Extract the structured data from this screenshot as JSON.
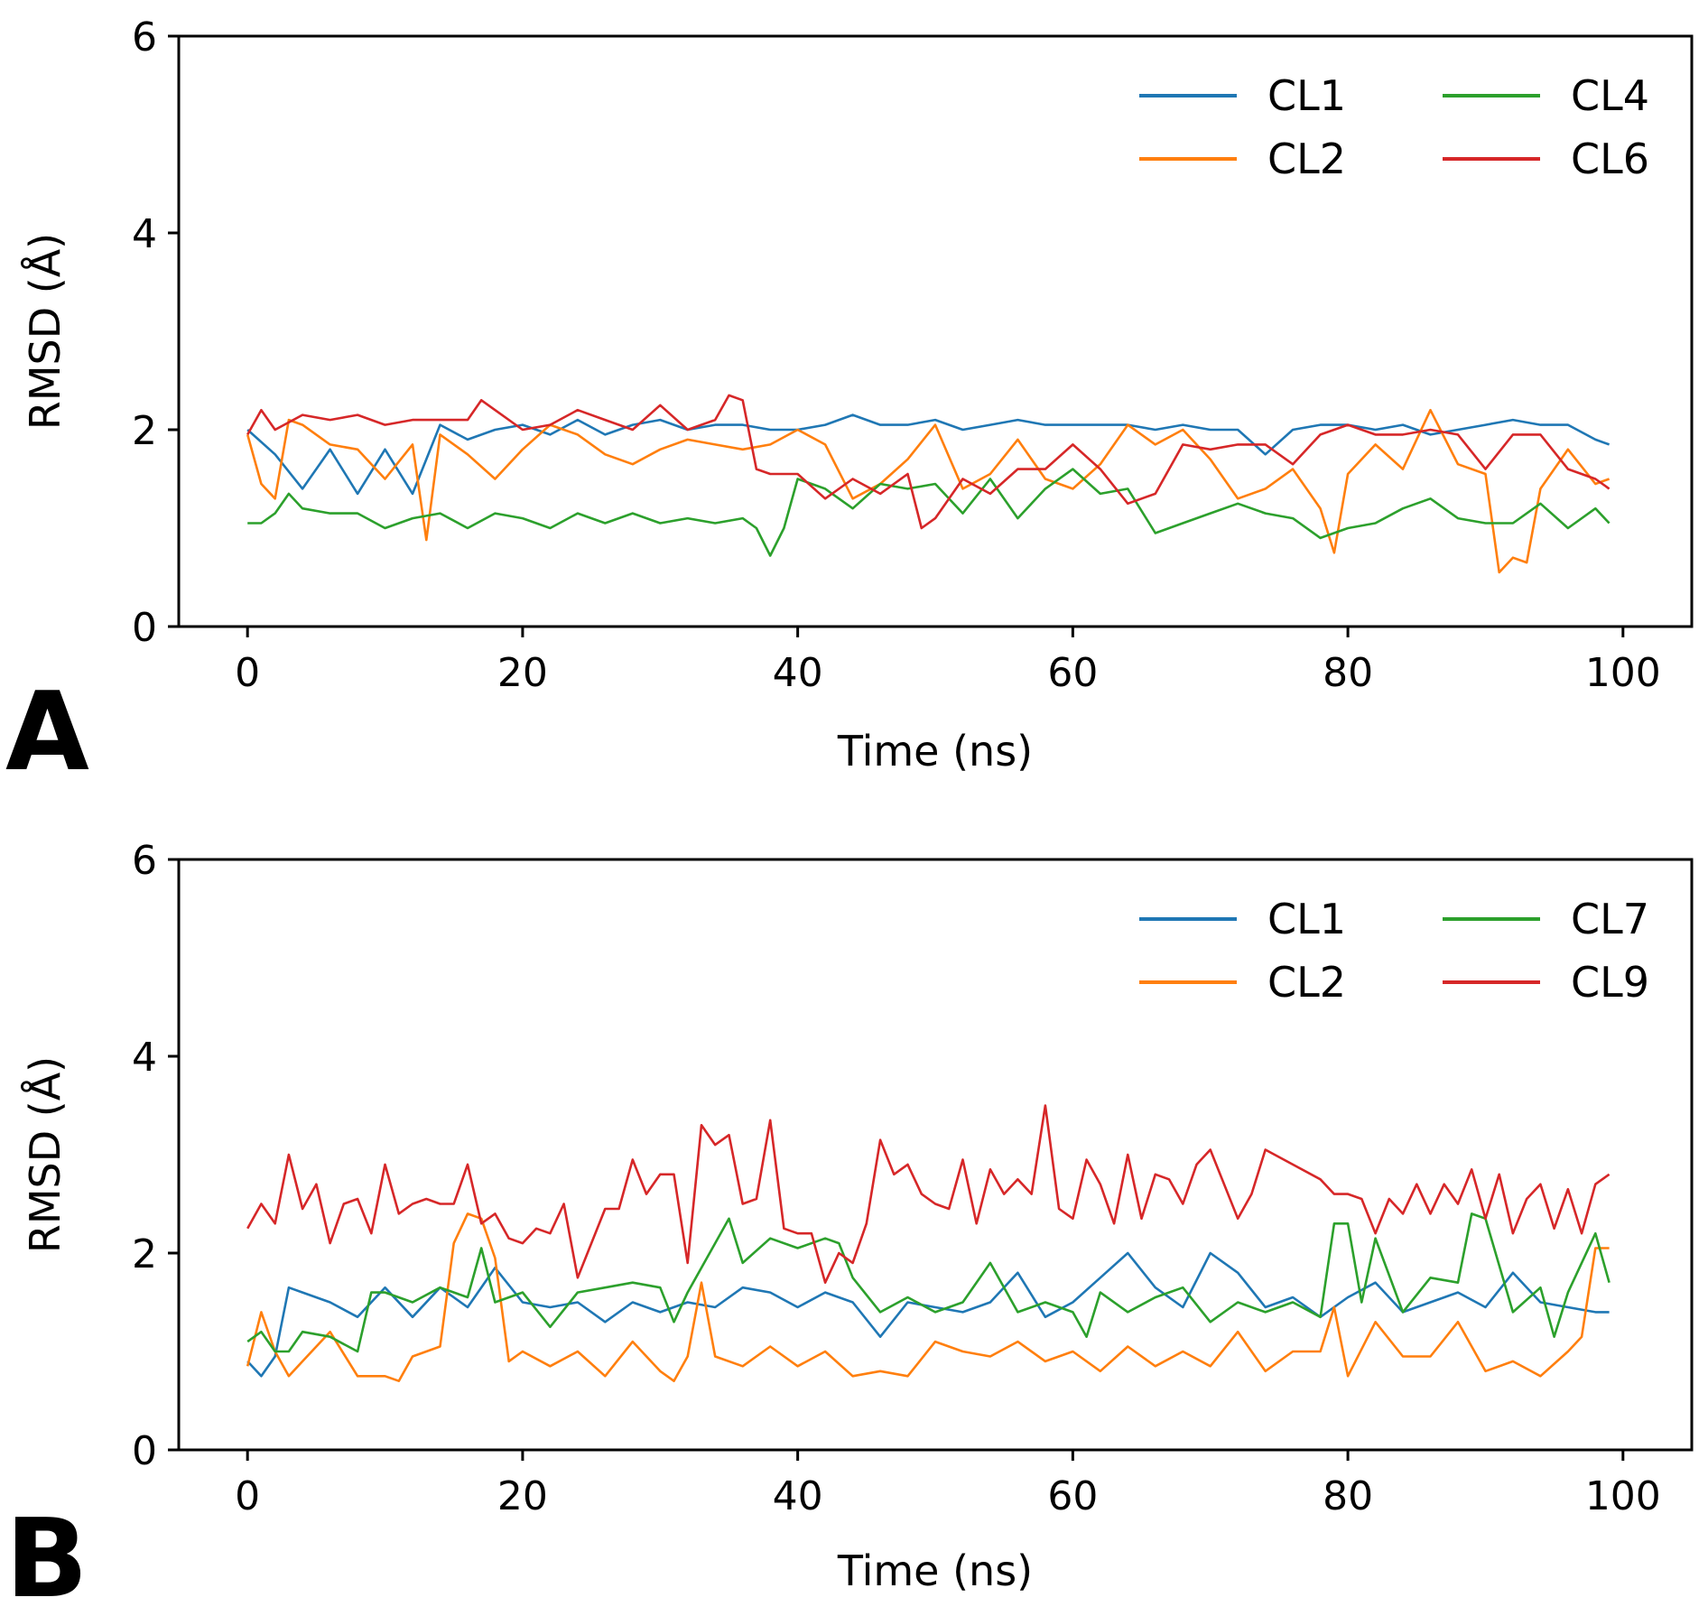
{
  "chart_data": [
    {
      "type": "line",
      "panel": "A",
      "xlabel": "Time (ns)",
      "ylabel": "RMSD (Å)",
      "xlim": [
        -5,
        105
      ],
      "ylim": [
        0,
        6
      ],
      "xticks": [
        "0",
        "20",
        "40",
        "60",
        "80",
        "100"
      ],
      "yticks": [
        "0",
        "2",
        "4",
        "6"
      ],
      "legend_position": "top-right",
      "series": [
        {
          "name": "CL1",
          "color": "#1f77b4",
          "x": [
            0,
            2,
            4,
            6,
            8,
            10,
            12,
            14,
            16,
            18,
            20,
            22,
            24,
            26,
            28,
            30,
            32,
            34,
            36,
            38,
            40,
            42,
            44,
            46,
            48,
            50,
            52,
            54,
            56,
            58,
            60,
            62,
            64,
            66,
            68,
            70,
            72,
            74,
            76,
            78,
            80,
            82,
            84,
            86,
            88,
            90,
            92,
            94,
            96,
            98,
            99
          ],
          "y": [
            2.0,
            1.75,
            1.4,
            1.8,
            1.35,
            1.8,
            1.35,
            2.05,
            1.9,
            2.0,
            2.05,
            1.95,
            2.1,
            1.95,
            2.05,
            2.1,
            2.0,
            2.05,
            2.05,
            2.0,
            2.0,
            2.05,
            2.15,
            2.05,
            2.05,
            2.1,
            2.0,
            2.05,
            2.1,
            2.05,
            2.05,
            2.05,
            2.05,
            2.0,
            2.05,
            2.0,
            2.0,
            1.75,
            2.0,
            2.05,
            2.05,
            2.0,
            2.05,
            1.95,
            2.0,
            2.05,
            2.1,
            2.05,
            2.05,
            1.9,
            1.85
          ]
        },
        {
          "name": "CL2",
          "color": "#ff7f0e",
          "x": [
            0,
            1,
            2,
            3,
            4,
            6,
            8,
            10,
            12,
            13,
            14,
            16,
            18,
            20,
            22,
            24,
            26,
            28,
            30,
            32,
            34,
            36,
            38,
            40,
            42,
            44,
            46,
            48,
            50,
            52,
            54,
            56,
            58,
            60,
            62,
            64,
            66,
            68,
            70,
            72,
            74,
            76,
            78,
            79,
            80,
            82,
            84,
            86,
            88,
            90,
            91,
            92,
            93,
            94,
            96,
            98,
            99
          ],
          "y": [
            1.95,
            1.45,
            1.3,
            2.1,
            2.05,
            1.85,
            1.8,
            1.5,
            1.85,
            0.88,
            1.95,
            1.75,
            1.5,
            1.8,
            2.05,
            1.95,
            1.75,
            1.65,
            1.8,
            1.9,
            1.85,
            1.8,
            1.85,
            2.0,
            1.85,
            1.3,
            1.45,
            1.7,
            2.05,
            1.4,
            1.55,
            1.9,
            1.5,
            1.4,
            1.65,
            2.05,
            1.85,
            2.0,
            1.7,
            1.3,
            1.4,
            1.6,
            1.2,
            0.75,
            1.55,
            1.85,
            1.6,
            2.2,
            1.65,
            1.55,
            0.55,
            0.7,
            0.65,
            1.4,
            1.8,
            1.45,
            1.5
          ]
        },
        {
          "name": "CL4",
          "color": "#2ca02c",
          "x": [
            0,
            1,
            2,
            3,
            4,
            6,
            8,
            10,
            12,
            14,
            16,
            18,
            20,
            22,
            24,
            26,
            28,
            30,
            32,
            34,
            36,
            37,
            38,
            39,
            40,
            42,
            44,
            46,
            48,
            50,
            52,
            54,
            56,
            58,
            60,
            62,
            64,
            66,
            68,
            70,
            72,
            74,
            76,
            78,
            80,
            82,
            84,
            86,
            88,
            90,
            92,
            94,
            96,
            98,
            99
          ],
          "y": [
            1.05,
            1.05,
            1.15,
            1.35,
            1.2,
            1.15,
            1.15,
            1.0,
            1.1,
            1.15,
            1.0,
            1.15,
            1.1,
            1.0,
            1.15,
            1.05,
            1.15,
            1.05,
            1.1,
            1.05,
            1.1,
            1.0,
            0.72,
            1.0,
            1.5,
            1.4,
            1.2,
            1.45,
            1.4,
            1.45,
            1.15,
            1.5,
            1.1,
            1.4,
            1.6,
            1.35,
            1.4,
            0.95,
            1.05,
            1.15,
            1.25,
            1.15,
            1.1,
            0.9,
            1.0,
            1.05,
            1.2,
            1.3,
            1.1,
            1.05,
            1.05,
            1.25,
            1.0,
            1.2,
            1.05
          ]
        },
        {
          "name": "CL6",
          "color": "#d62728",
          "x": [
            0,
            1,
            2,
            4,
            6,
            8,
            10,
            12,
            14,
            16,
            17,
            18,
            20,
            22,
            24,
            26,
            28,
            30,
            32,
            34,
            35,
            36,
            37,
            38,
            40,
            42,
            44,
            46,
            48,
            49,
            50,
            52,
            54,
            56,
            58,
            60,
            62,
            64,
            66,
            68,
            70,
            72,
            74,
            76,
            78,
            80,
            82,
            84,
            86,
            88,
            90,
            92,
            94,
            96,
            98,
            99
          ],
          "y": [
            1.95,
            2.2,
            2.0,
            2.15,
            2.1,
            2.15,
            2.05,
            2.1,
            2.1,
            2.1,
            2.3,
            2.2,
            2.0,
            2.05,
            2.2,
            2.1,
            2.0,
            2.25,
            2.0,
            2.1,
            2.35,
            2.3,
            1.6,
            1.55,
            1.55,
            1.3,
            1.5,
            1.35,
            1.55,
            1.0,
            1.1,
            1.5,
            1.35,
            1.6,
            1.6,
            1.85,
            1.6,
            1.25,
            1.35,
            1.85,
            1.8,
            1.85,
            1.85,
            1.65,
            1.95,
            2.05,
            1.95,
            1.95,
            2.0,
            1.95,
            1.6,
            1.95,
            1.95,
            1.6,
            1.5,
            1.4
          ]
        }
      ]
    },
    {
      "type": "line",
      "panel": "B",
      "xlabel": "Time (ns)",
      "ylabel": "RMSD (Å)",
      "xlim": [
        -5,
        105
      ],
      "ylim": [
        0,
        6
      ],
      "xticks": [
        "0",
        "20",
        "40",
        "60",
        "80",
        "100"
      ],
      "yticks": [
        "0",
        "2",
        "4",
        "6"
      ],
      "legend_position": "top-right",
      "series": [
        {
          "name": "CL1",
          "color": "#1f77b4",
          "x": [
            0,
            1,
            2,
            3,
            4,
            6,
            8,
            10,
            12,
            14,
            16,
            18,
            20,
            22,
            24,
            26,
            28,
            30,
            32,
            34,
            36,
            38,
            40,
            42,
            44,
            46,
            48,
            50,
            52,
            54,
            56,
            58,
            60,
            62,
            64,
            66,
            68,
            70,
            72,
            74,
            76,
            78,
            80,
            82,
            84,
            86,
            88,
            90,
            92,
            94,
            96,
            98,
            99
          ],
          "y": [
            0.9,
            0.75,
            0.95,
            1.65,
            1.6,
            1.5,
            1.35,
            1.65,
            1.35,
            1.65,
            1.45,
            1.85,
            1.5,
            1.45,
            1.5,
            1.3,
            1.5,
            1.4,
            1.5,
            1.45,
            1.65,
            1.6,
            1.45,
            1.6,
            1.5,
            1.15,
            1.5,
            1.45,
            1.4,
            1.5,
            1.8,
            1.35,
            1.5,
            1.75,
            2.0,
            1.65,
            1.45,
            2.0,
            1.8,
            1.45,
            1.55,
            1.35,
            1.55,
            1.7,
            1.4,
            1.5,
            1.6,
            1.45,
            1.8,
            1.5,
            1.45,
            1.4,
            1.4
          ]
        },
        {
          "name": "CL2",
          "color": "#ff7f0e",
          "x": [
            0,
            1,
            2,
            3,
            4,
            6,
            8,
            10,
            11,
            12,
            14,
            15,
            16,
            17,
            18,
            19,
            20,
            22,
            24,
            26,
            28,
            30,
            31,
            32,
            33,
            34,
            36,
            38,
            40,
            42,
            44,
            46,
            48,
            50,
            52,
            54,
            56,
            58,
            60,
            62,
            64,
            66,
            68,
            70,
            72,
            74,
            76,
            78,
            79,
            80,
            82,
            84,
            86,
            88,
            90,
            92,
            94,
            96,
            97,
            98,
            99
          ],
          "y": [
            0.85,
            1.4,
            1.0,
            0.75,
            0.9,
            1.2,
            0.75,
            0.75,
            0.7,
            0.95,
            1.05,
            2.1,
            2.4,
            2.35,
            1.95,
            0.9,
            1.0,
            0.85,
            1.0,
            0.75,
            1.1,
            0.8,
            0.7,
            0.95,
            1.7,
            0.95,
            0.85,
            1.05,
            0.85,
            1.0,
            0.75,
            0.8,
            0.75,
            1.1,
            1.0,
            0.95,
            1.1,
            0.9,
            1.0,
            0.8,
            1.05,
            0.85,
            1.0,
            0.85,
            1.2,
            0.8,
            1.0,
            1.0,
            1.45,
            0.75,
            1.3,
            0.95,
            0.95,
            1.3,
            0.8,
            0.9,
            0.75,
            1.0,
            1.15,
            2.05,
            2.05
          ]
        },
        {
          "name": "CL7",
          "color": "#2ca02c",
          "x": [
            0,
            1,
            2,
            3,
            4,
            6,
            8,
            9,
            10,
            12,
            14,
            16,
            17,
            18,
            20,
            22,
            24,
            26,
            28,
            30,
            31,
            32,
            34,
            35,
            36,
            38,
            40,
            42,
            43,
            44,
            46,
            48,
            50,
            52,
            54,
            56,
            58,
            60,
            61,
            62,
            64,
            66,
            68,
            70,
            72,
            74,
            76,
            78,
            79,
            80,
            81,
            82,
            84,
            86,
            88,
            89,
            90,
            92,
            94,
            95,
            96,
            98,
            99
          ],
          "y": [
            1.1,
            1.2,
            1.0,
            1.0,
            1.2,
            1.15,
            1.0,
            1.6,
            1.6,
            1.5,
            1.65,
            1.55,
            2.05,
            1.5,
            1.6,
            1.25,
            1.6,
            1.65,
            1.7,
            1.65,
            1.3,
            1.6,
            2.1,
            2.35,
            1.9,
            2.15,
            2.05,
            2.15,
            2.1,
            1.75,
            1.4,
            1.55,
            1.4,
            1.5,
            1.9,
            1.4,
            1.5,
            1.4,
            1.15,
            1.6,
            1.4,
            1.55,
            1.65,
            1.3,
            1.5,
            1.4,
            1.5,
            1.35,
            2.3,
            2.3,
            1.5,
            2.15,
            1.4,
            1.75,
            1.7,
            2.4,
            2.35,
            1.4,
            1.65,
            1.15,
            1.6,
            2.2,
            1.7
          ]
        },
        {
          "name": "CL9",
          "color": "#d62728",
          "x": [
            0,
            1,
            2,
            3,
            4,
            5,
            6,
            7,
            8,
            9,
            10,
            11,
            12,
            13,
            14,
            15,
            16,
            17,
            18,
            19,
            20,
            21,
            22,
            23,
            24,
            25,
            26,
            27,
            28,
            29,
            30,
            31,
            32,
            33,
            34,
            35,
            36,
            37,
            38,
            39,
            40,
            41,
            42,
            43,
            44,
            45,
            46,
            47,
            48,
            49,
            50,
            51,
            52,
            53,
            54,
            55,
            56,
            57,
            58,
            59,
            60,
            61,
            62,
            63,
            64,
            65,
            66,
            67,
            68,
            69,
            70,
            72,
            73,
            74,
            76,
            78,
            79,
            80,
            81,
            82,
            83,
            84,
            85,
            86,
            87,
            88,
            89,
            90,
            91,
            92,
            93,
            94,
            95,
            96,
            97,
            98,
            99
          ],
          "y": [
            2.25,
            2.5,
            2.3,
            3.0,
            2.45,
            2.7,
            2.1,
            2.5,
            2.55,
            2.2,
            2.9,
            2.4,
            2.5,
            2.55,
            2.5,
            2.5,
            2.9,
            2.3,
            2.4,
            2.15,
            2.1,
            2.25,
            2.2,
            2.5,
            1.75,
            2.1,
            2.45,
            2.45,
            2.95,
            2.6,
            2.8,
            2.8,
            1.9,
            3.3,
            3.1,
            3.2,
            2.5,
            2.55,
            3.35,
            2.25,
            2.2,
            2.2,
            1.7,
            2.0,
            1.9,
            2.3,
            3.15,
            2.8,
            2.9,
            2.6,
            2.5,
            2.45,
            2.95,
            2.3,
            2.85,
            2.6,
            2.75,
            2.6,
            3.5,
            2.45,
            2.35,
            2.95,
            2.7,
            2.3,
            3.0,
            2.35,
            2.8,
            2.75,
            2.5,
            2.9,
            3.05,
            2.35,
            2.6,
            3.05,
            2.9,
            2.75,
            2.6,
            2.6,
            2.55,
            2.2,
            2.55,
            2.4,
            2.7,
            2.4,
            2.7,
            2.5,
            2.85,
            2.35,
            2.8,
            2.2,
            2.55,
            2.7,
            2.25,
            2.65,
            2.2,
            2.7,
            2.8
          ]
        }
      ]
    }
  ]
}
